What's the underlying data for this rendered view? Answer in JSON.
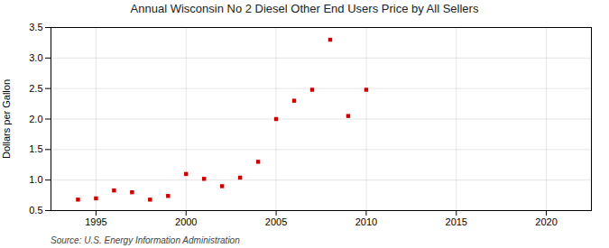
{
  "chart_data": {
    "type": "scatter",
    "title": "Annual Wisconsin No 2 Diesel Other End Users Price by All Sellers",
    "ylabel": "Dollars per Gallon",
    "source": "Source: U.S. Energy Information Administration",
    "x": [
      1994,
      1995,
      1996,
      1997,
      1998,
      1999,
      2000,
      2001,
      2002,
      2003,
      2004,
      2005,
      2006,
      2007,
      2008,
      2009,
      2010
    ],
    "values": [
      0.68,
      0.7,
      0.83,
      0.8,
      0.68,
      0.74,
      1.1,
      1.02,
      0.9,
      1.04,
      1.3,
      2.0,
      2.3,
      2.48,
      3.3,
      2.05,
      2.48
    ],
    "color": "#cc0000",
    "marker": "square",
    "xlim": [
      1992.5,
      2022.5
    ],
    "ylim": [
      0.5,
      3.5
    ],
    "xticks": [
      1995,
      2000,
      2005,
      2010,
      2015,
      2020
    ],
    "yticks": [
      0.5,
      {
        "value": 1.0,
        "label": "1.0"
      },
      1.5,
      {
        "value": 2.0,
        "label": "2.0"
      },
      2.5,
      {
        "value": 3.0,
        "label": "3.0"
      },
      3.5
    ],
    "grid": true
  }
}
